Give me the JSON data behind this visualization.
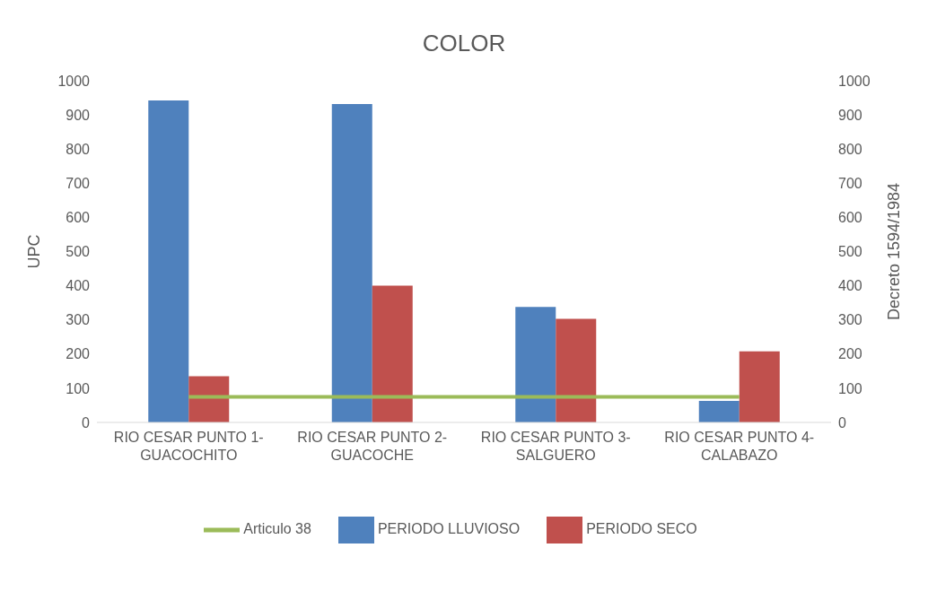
{
  "chart_data": {
    "type": "bar",
    "title": "COLOR",
    "ylabel": "UPC",
    "y2label": "Decreto 1594/1984",
    "categories": [
      "RIO CESAR PUNTO 1- GUACOCHITO",
      "RIO CESAR PUNTO 2- GUACOCHE",
      "RIO CESAR PUNTO 3- SALGUERO",
      "RIO CESAR PUNTO 4- CALABAZO"
    ],
    "series": [
      {
        "name": "PERIODO LLUVIOSO",
        "color": "#4f81bd",
        "values": [
          942,
          932,
          338,
          63
        ]
      },
      {
        "name": "PERIODO SECO",
        "color": "#c0504d",
        "values": [
          135,
          400,
          303,
          208
        ]
      },
      {
        "name": "Articulo 38",
        "type": "line",
        "axis": "y2",
        "color": "#9bbb59",
        "values": [
          75,
          75,
          75,
          75
        ]
      }
    ],
    "ylim": [
      0,
      1000
    ],
    "yticks": [
      0,
      100,
      200,
      300,
      400,
      500,
      600,
      700,
      800,
      900,
      1000
    ],
    "y2lim": [
      0,
      1000
    ],
    "y2ticks": [
      0,
      100,
      200,
      300,
      400,
      500,
      600,
      700,
      800,
      900,
      1000
    ],
    "grid": false,
    "legend": "bottom",
    "marker": "none"
  }
}
